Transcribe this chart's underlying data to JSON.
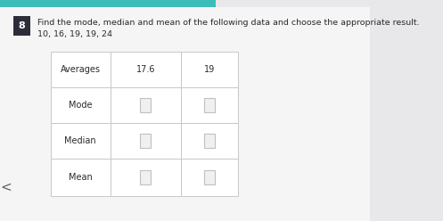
{
  "question_number": "8",
  "question_text": "Find the mode, median and mean of the following data and choose the appropriate result.",
  "data_line": "10, 16, 19, 19, 24",
  "bg_color": "#e8e8ea",
  "content_bg": "#f5f5f5",
  "teal_color": "#3dbdb8",
  "badge_bg": "#2d2d3a",
  "badge_text": "#ffffff",
  "table_header_row": [
    "Averages",
    "17.6",
    "19"
  ],
  "table_row_labels": [
    "Mode",
    "Median",
    "Mean"
  ],
  "table_bg": "#ffffff",
  "table_border_color": "#c8c8c8",
  "checkbox_fill": "#f0f0f0",
  "checkbox_border": "#c0c0c0",
  "text_color": "#2a2a2a",
  "arrow_color": "#666666"
}
